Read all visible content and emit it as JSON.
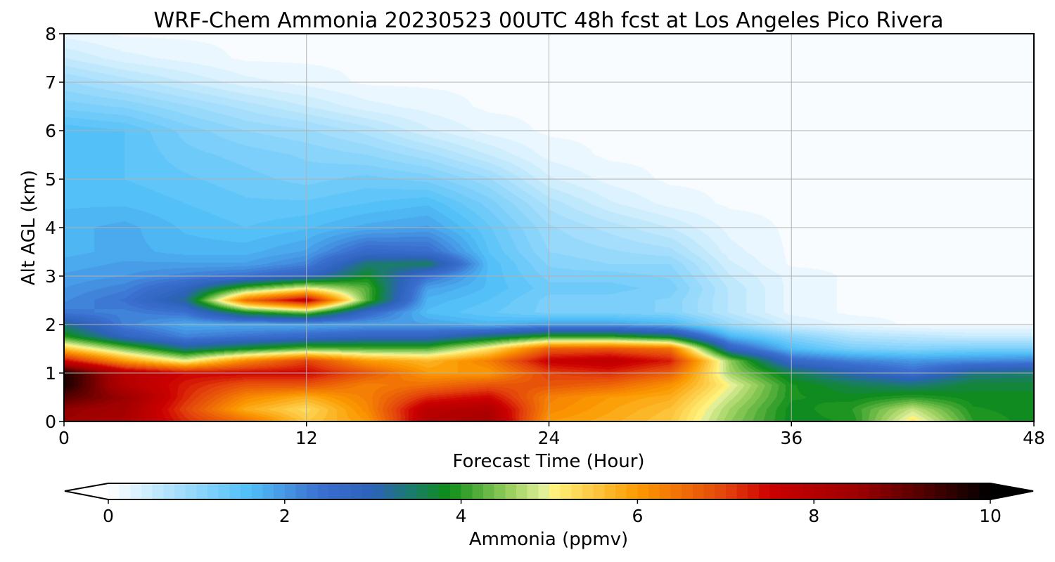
{
  "chart_data": {
    "type": "heatmap",
    "subtype": "filled-contour time-height cross section",
    "title": "WRF-Chem Ammonia  20230523 00UTC 48h fcst at Los Angeles Pico Rivera",
    "xlabel": "Forecast Time (Hour)",
    "ylabel": "Alt AGL (km)",
    "xlim": [
      0,
      48
    ],
    "ylim": [
      0,
      8
    ],
    "xticks": [
      0,
      12,
      24,
      36,
      48
    ],
    "yticks": [
      0,
      1,
      2,
      3,
      4,
      5,
      6,
      7,
      8
    ],
    "grid": true,
    "x_hours": [
      0,
      3,
      6,
      9,
      12,
      15,
      18,
      21,
      24,
      27,
      30,
      33,
      36,
      39,
      42,
      45,
      48
    ],
    "z_km": [
      0,
      0.25,
      0.5,
      0.75,
      1.0,
      1.25,
      1.5,
      1.75,
      2.0,
      2.25,
      2.5,
      2.75,
      3.0,
      3.25,
      3.5,
      4.0,
      4.5,
      5.0,
      5.5,
      6.0,
      6.5,
      7.0,
      7.5,
      8.0
    ],
    "values_ppmv": [
      [
        8.5,
        8.2,
        7.2,
        6.5,
        5.5,
        6.0,
        8.0,
        8.3,
        6.0,
        5.8,
        5.5,
        4.5,
        3.8,
        3.9,
        5.2,
        4.0,
        3.8
      ],
      [
        8.6,
        8.3,
        7.0,
        5.8,
        5.3,
        6.2,
        7.9,
        8.1,
        6.2,
        5.9,
        5.6,
        4.6,
        3.8,
        4.0,
        4.8,
        3.9,
        3.8
      ],
      [
        9.2,
        8.5,
        7.2,
        6.2,
        5.8,
        6.3,
        7.2,
        7.5,
        6.3,
        6.0,
        5.8,
        4.8,
        3.9,
        3.8,
        4.0,
        3.8,
        3.8
      ],
      [
        9.8,
        8.0,
        7.3,
        6.8,
        6.8,
        6.3,
        6.5,
        6.8,
        6.8,
        6.6,
        6.1,
        5.0,
        3.9,
        3.6,
        3.4,
        3.7,
        3.7
      ],
      [
        9.8,
        8.0,
        7.5,
        7.5,
        7.5,
        6.8,
        6.0,
        6.0,
        7.0,
        7.2,
        6.7,
        4.6,
        3.6,
        3.0,
        2.5,
        3.3,
        3.4
      ],
      [
        7.5,
        6.0,
        5.0,
        6.2,
        7.0,
        6.0,
        5.7,
        6.3,
        7.6,
        7.8,
        7.3,
        4.5,
        2.6,
        2.2,
        2.0,
        2.1,
        2.2
      ],
      [
        5.6,
        4.4,
        3.3,
        3.8,
        4.3,
        4.2,
        4.2,
        5.2,
        6.7,
        6.8,
        6.5,
        2.8,
        1.6,
        1.2,
        1.1,
        1.2,
        1.2
      ],
      [
        4.0,
        2.8,
        2.2,
        2.4,
        2.6,
        2.8,
        2.8,
        3.4,
        4.0,
        4.0,
        3.6,
        1.7,
        1.1,
        0.7,
        0.6,
        0.5,
        0.5
      ],
      [
        3.3,
        2.2,
        1.8,
        1.8,
        1.8,
        1.9,
        1.9,
        1.7,
        1.9,
        1.9,
        1.7,
        0.9,
        0.4,
        0.2,
        0.1,
        0.1,
        0.1
      ],
      [
        2.3,
        2.2,
        2.4,
        3.8,
        4.4,
        2.6,
        1.6,
        1.4,
        1.2,
        1.2,
        1.1,
        0.6,
        0.2,
        0.1,
        0.1,
        0.1,
        0.1
      ],
      [
        2.1,
        2.4,
        3.2,
        6.5,
        7.8,
        4.2,
        1.7,
        1.5,
        1.2,
        1.2,
        1.1,
        0.6,
        0.2,
        0.1,
        0.1,
        0.1,
        0.1
      ],
      [
        2.0,
        2.2,
        2.8,
        4.2,
        5.0,
        4.2,
        1.9,
        1.6,
        1.3,
        1.3,
        1.2,
        0.6,
        0.2,
        0.1,
        0.1,
        0.1,
        0.1
      ],
      [
        1.9,
        2.0,
        2.2,
        2.4,
        2.8,
        3.8,
        2.4,
        1.6,
        1.2,
        1.2,
        1.1,
        0.5,
        0.2,
        0.1,
        0.1,
        0.1,
        0.1
      ],
      [
        1.8,
        1.9,
        1.9,
        1.9,
        2.2,
        3.4,
        3.5,
        1.6,
        1.1,
        1.0,
        1.0,
        0.4,
        0.1,
        0.1,
        0.1,
        0.1,
        0.1
      ],
      [
        1.7,
        1.8,
        1.7,
        1.7,
        1.9,
        2.6,
        2.5,
        1.5,
        1.0,
        0.9,
        0.8,
        0.3,
        0.1,
        0.1,
        0.1,
        0.1,
        0.1
      ],
      [
        1.7,
        1.8,
        1.6,
        1.5,
        1.6,
        1.8,
        1.9,
        1.4,
        0.9,
        0.7,
        0.5,
        0.2,
        0.1,
        0.1,
        0.1,
        0.1,
        0.1
      ],
      [
        1.6,
        1.6,
        1.5,
        1.4,
        1.4,
        1.5,
        1.6,
        1.2,
        0.7,
        0.4,
        0.2,
        0.1,
        0.1,
        0.1,
        0.1,
        0.1,
        0.1
      ],
      [
        1.6,
        1.5,
        1.4,
        1.3,
        1.2,
        1.3,
        1.2,
        0.9,
        0.4,
        0.2,
        0.1,
        0.1,
        0.1,
        0.1,
        0.1,
        0.1,
        0.1
      ],
      [
        1.6,
        1.5,
        1.3,
        1.2,
        1.1,
        1.0,
        0.8,
        0.5,
        0.2,
        0.1,
        0.1,
        0.1,
        0.1,
        0.1,
        0.1,
        0.1,
        0.1
      ],
      [
        1.6,
        1.5,
        1.2,
        1.0,
        0.9,
        0.7,
        0.4,
        0.2,
        0.1,
        0.1,
        0.1,
        0.1,
        0.1,
        0.1,
        0.1,
        0.1,
        0.1
      ],
      [
        1.2,
        1.1,
        0.9,
        0.7,
        0.5,
        0.3,
        0.2,
        0.1,
        0.1,
        0.1,
        0.1,
        0.1,
        0.1,
        0.1,
        0.1,
        0.1,
        0.1
      ],
      [
        0.9,
        0.7,
        0.5,
        0.3,
        0.2,
        0.1,
        0.1,
        0.1,
        0.1,
        0.1,
        0.1,
        0.1,
        0.1,
        0.1,
        0.1,
        0.1,
        0.1
      ],
      [
        0.5,
        0.3,
        0.2,
        0.1,
        0.1,
        0.1,
        0.1,
        0.1,
        0.1,
        0.1,
        0.1,
        0.1,
        0.1,
        0.1,
        0.1,
        0.1,
        0.1
      ],
      [
        0.2,
        0.1,
        0.1,
        0.1,
        0.1,
        0.1,
        0.1,
        0.1,
        0.1,
        0.1,
        0.1,
        0.1,
        0.1,
        0.1,
        0.1,
        0.1,
        0.1
      ]
    ],
    "colorbar": {
      "label": "Ammonia  (ppmv)",
      "min": 0,
      "max": 10,
      "ticks": [
        0,
        2,
        4,
        6,
        8,
        10
      ],
      "extend": "both",
      "color_stops": [
        {
          "v": 0.0,
          "c": "#ffffff"
        },
        {
          "v": 1.0,
          "c": "#8fd6fb"
        },
        {
          "v": 1.6,
          "c": "#4fbff7"
        },
        {
          "v": 2.4,
          "c": "#3b6fd0"
        },
        {
          "v": 3.0,
          "c": "#2c62b8"
        },
        {
          "v": 3.5,
          "c": "#197e61"
        },
        {
          "v": 3.85,
          "c": "#0e8d18"
        },
        {
          "v": 4.5,
          "c": "#8fcb58"
        },
        {
          "v": 4.95,
          "c": "#e3f09a"
        },
        {
          "v": 5.0,
          "c": "#fff784"
        },
        {
          "v": 6.0,
          "c": "#fb9a00"
        },
        {
          "v": 7.0,
          "c": "#e4420c"
        },
        {
          "v": 7.5,
          "c": "#cc0000"
        },
        {
          "v": 8.5,
          "c": "#9c0000"
        },
        {
          "v": 9.3,
          "c": "#4a0000"
        },
        {
          "v": 10.0,
          "c": "#000000"
        }
      ],
      "under_color": "#ffffff",
      "over_color": "#000000"
    }
  }
}
